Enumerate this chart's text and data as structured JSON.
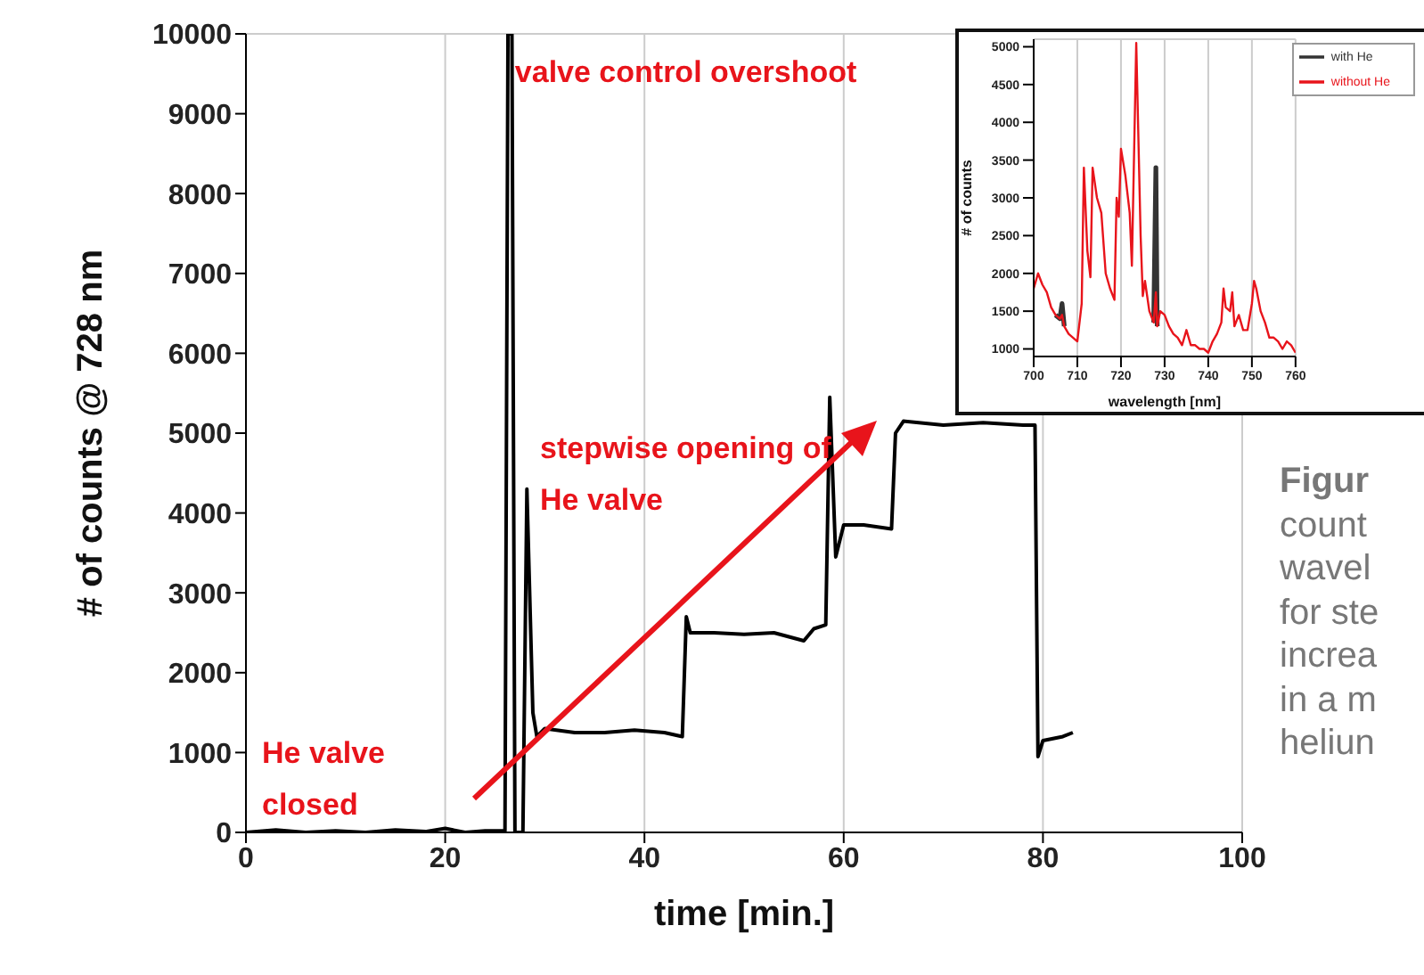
{
  "chart_data": [
    {
      "type": "line",
      "xlabel": "time [min.]",
      "ylabel": "# of counts @ 728 nm",
      "xlim": [
        0,
        100
      ],
      "xticks": [
        0,
        20,
        40,
        60,
        80,
        100
      ],
      "ylim": [
        0,
        10000
      ],
      "yticks": [
        0,
        1000,
        2000,
        3000,
        4000,
        5000,
        6000,
        7000,
        8000,
        9000,
        10000
      ],
      "grid": true,
      "x": [
        0,
        3,
        6,
        9,
        12,
        15,
        18,
        20,
        22,
        24,
        26,
        26.3,
        26.7,
        27,
        27.8,
        28.2,
        28.8,
        29.2,
        30,
        33,
        36,
        39,
        42,
        43.8,
        44.2,
        44.6,
        47,
        50,
        53,
        56,
        57,
        58.2,
        58.6,
        59.2,
        60,
        62,
        64.8,
        65.2,
        66,
        70,
        74,
        78,
        79.2,
        79.5,
        80,
        82,
        83
      ],
      "series": [
        {
          "color": "#000000",
          "values": [
            0,
            30,
            0,
            20,
            0,
            30,
            10,
            50,
            0,
            20,
            20,
            10000,
            10000,
            0,
            0,
            4300,
            1500,
            1200,
            1300,
            1250,
            1250,
            1280,
            1250,
            1200,
            2700,
            2500,
            2500,
            2480,
            2500,
            2400,
            2550,
            2600,
            5450,
            3450,
            3850,
            3850,
            3800,
            5000,
            5150,
            5100,
            5130,
            5100,
            5100,
            950,
            1150,
            1200,
            1250
          ]
        }
      ],
      "annotations": [
        {
          "text": "valve control overshoot",
          "x": 27,
          "y": 9400
        },
        "stepwise opening of He valve",
        "He valve closed",
        "Figur",
        "count",
        "wavel",
        "for ste",
        "increa",
        "in a m",
        "heliun"
      ]
    },
    {
      "type": "line",
      "xlabel": "wavelength [nm]",
      "ylabel": "# of counts",
      "xlim": [
        700,
        760
      ],
      "xticks": [
        700,
        710,
        720,
        730,
        740,
        750,
        760
      ],
      "ylim": [
        900,
        5100
      ],
      "yticks": [
        1000,
        1500,
        2000,
        2500,
        3000,
        3500,
        4000,
        4500,
        5000
      ],
      "grid": true,
      "legend": "top right",
      "x": [
        700,
        701,
        702,
        703,
        704,
        705,
        706,
        706.5,
        707,
        708,
        709,
        710,
        711,
        711.5,
        712.3,
        713,
        713.5,
        714.5,
        715.5,
        716.5,
        717.5,
        718.5,
        719,
        719.5,
        720,
        721,
        722,
        722.5,
        723.5,
        724.5,
        725,
        725.5,
        726.5,
        727.5,
        728,
        728.3,
        729,
        730,
        731,
        732,
        733,
        734,
        735,
        736,
        737,
        738,
        739,
        740,
        741,
        742,
        743,
        743.5,
        744,
        745,
        745.5,
        746,
        747,
        748,
        749,
        750,
        750.5,
        751,
        752,
        753,
        754,
        755,
        756,
        757,
        758,
        759,
        760
      ],
      "series": [
        {
          "name": "with He",
          "color": "#333333",
          "values": [
            null,
            null,
            null,
            null,
            null,
            1450,
            1400,
            1600,
            1300,
            null,
            null,
            null,
            null,
            null,
            null,
            null,
            null,
            null,
            null,
            null,
            null,
            null,
            null,
            null,
            null,
            null,
            null,
            null,
            null,
            null,
            null,
            null,
            null,
            1350,
            3400,
            1300,
            null,
            null,
            null,
            null,
            null,
            null,
            null,
            null,
            null,
            null,
            null,
            null,
            null,
            null,
            null,
            null,
            null,
            null,
            null,
            null,
            null,
            null,
            null,
            null,
            null,
            null,
            null,
            null,
            null,
            null,
            null,
            null,
            null,
            null,
            null
          ]
        },
        {
          "name": "without He",
          "color": "#e8141b",
          "values": [
            1800,
            2000,
            1850,
            1750,
            1550,
            1450,
            1400,
            1450,
            1300,
            1200,
            1150,
            1100,
            1600,
            3400,
            2300,
            1950,
            3400,
            3000,
            2800,
            2000,
            1800,
            1650,
            3000,
            2750,
            3650,
            3300,
            2800,
            2100,
            5050,
            2500,
            1700,
            1900,
            1500,
            1350,
            1750,
            1300,
            1500,
            1450,
            1300,
            1200,
            1150,
            1050,
            1250,
            1050,
            1050,
            1000,
            1000,
            950,
            1100,
            1200,
            1350,
            1800,
            1550,
            1500,
            1750,
            1300,
            1450,
            1250,
            1250,
            1600,
            1900,
            1800,
            1500,
            1350,
            1150,
            1150,
            1100,
            1000,
            1100,
            1050,
            950
          ]
        }
      ]
    }
  ]
}
